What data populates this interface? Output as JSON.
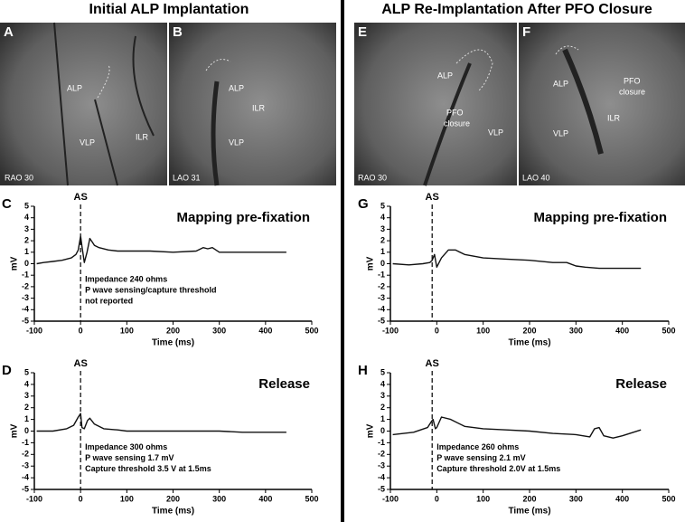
{
  "headings": [
    "Initial ALP Implantation",
    "ALP Re-Implantation After PFO Closure"
  ],
  "images": [
    {
      "letter": "A",
      "view": "RAO 30",
      "labels": [
        "ALP",
        "VLP",
        "ILR"
      ]
    },
    {
      "letter": "B",
      "view": "LAO 31",
      "labels": [
        "ALP",
        "ILR",
        "VLP"
      ]
    },
    {
      "letter": "E",
      "view": "RAO 30",
      "labels": [
        "ALP",
        "PFO",
        "closure",
        "VLP"
      ]
    },
    {
      "letter": "F",
      "view": "LAO 40",
      "labels": [
        "ALP",
        "PFO",
        "closure",
        "ILR",
        "VLP"
      ]
    }
  ],
  "chart_data": [
    {
      "type": "line",
      "panel": "C",
      "title": "Mapping pre-fixation",
      "xlabel": "Time (ms)",
      "ylabel": "mV",
      "color": "#111111",
      "marker": {
        "label": "AS",
        "x": 0
      },
      "notes": [
        "Impedance 240 ohms",
        "P wave sensing/capture threshold",
        "not reported"
      ],
      "x": [
        -95,
        -80,
        -60,
        -40,
        -20,
        -10,
        -5,
        0,
        3,
        8,
        14,
        20,
        25,
        30,
        40,
        60,
        80,
        100,
        150,
        200,
        250,
        265,
        275,
        285,
        300,
        350,
        400,
        445
      ],
      "values": [
        0,
        0.1,
        0.2,
        0.3,
        0.5,
        0.8,
        1.2,
        2.4,
        1.5,
        0.1,
        1.0,
        2.2,
        1.9,
        1.6,
        1.4,
        1.2,
        1.1,
        1.1,
        1.1,
        1.0,
        1.1,
        1.4,
        1.3,
        1.4,
        1.0,
        1.0,
        1.0,
        1.0
      ],
      "xlim": [
        -100,
        500
      ],
      "xticks": [
        -100,
        0,
        100,
        200,
        300,
        400,
        500
      ],
      "ylim": [
        -5,
        5
      ],
      "yticks": [
        5,
        4,
        3,
        2,
        1,
        0,
        -1,
        -2,
        -3,
        -4,
        -5
      ]
    },
    {
      "type": "line",
      "panel": "D",
      "title": "Release",
      "xlabel": "Time (ms)",
      "ylabel": "mV",
      "color": "#111111",
      "marker": {
        "label": "AS",
        "x": 0
      },
      "notes": [
        "Impedance 300 ohms",
        "P wave sensing 1.7 mV",
        "Capture threshold 3.5 V at 1.5ms"
      ],
      "x": [
        -95,
        -60,
        -30,
        -15,
        -5,
        0,
        3,
        8,
        15,
        20,
        30,
        50,
        80,
        100,
        150,
        200,
        250,
        300,
        350,
        400,
        445
      ],
      "values": [
        0,
        0,
        0.2,
        0.5,
        1.2,
        1.5,
        0.3,
        0.2,
        0.9,
        1.1,
        0.6,
        0.2,
        0.1,
        0,
        0,
        0,
        0,
        0,
        -0.1,
        -0.1,
        -0.1
      ],
      "xlim": [
        -100,
        500
      ],
      "xticks": [
        -100,
        0,
        100,
        200,
        300,
        400,
        500
      ],
      "ylim": [
        -5,
        5
      ],
      "yticks": [
        5,
        4,
        3,
        2,
        1,
        0,
        -1,
        -2,
        -3,
        -4,
        -5
      ]
    },
    {
      "type": "line",
      "panel": "G",
      "title": "Mapping pre-fixation",
      "xlabel": "Time (ms)",
      "ylabel": "mV",
      "color": "#111111",
      "marker": {
        "label": "AS",
        "x": -10
      },
      "notes": [],
      "x": [
        -95,
        -60,
        -30,
        -15,
        -10,
        -5,
        0,
        10,
        25,
        40,
        60,
        100,
        150,
        200,
        250,
        280,
        300,
        320,
        350,
        400,
        440
      ],
      "values": [
        0,
        -0.1,
        0,
        0.1,
        0.3,
        0.8,
        -0.3,
        0.5,
        1.2,
        1.2,
        0.8,
        0.5,
        0.4,
        0.3,
        0.1,
        0.1,
        -0.2,
        -0.3,
        -0.4,
        -0.4,
        -0.4
      ],
      "xlim": [
        -100,
        500
      ],
      "xticks": [
        -100,
        0,
        100,
        200,
        300,
        400,
        500
      ],
      "ylim": [
        -5,
        5
      ],
      "yticks": [
        5,
        4,
        3,
        2,
        1,
        0,
        -1,
        -2,
        -3,
        -4,
        -5
      ]
    },
    {
      "type": "line",
      "panel": "H",
      "title": "Release",
      "xlabel": "Time (ms)",
      "ylabel": "mV",
      "color": "#111111",
      "marker": {
        "label": "AS",
        "x": -10
      },
      "notes": [
        "Impedance 260 ohms",
        "P wave sensing 2.1 mV",
        "Capture threshold 2.0V at 1.5ms"
      ],
      "x": [
        -95,
        -50,
        -20,
        -12,
        -8,
        -3,
        0,
        10,
        30,
        60,
        100,
        150,
        200,
        250,
        300,
        330,
        340,
        350,
        360,
        380,
        400,
        440
      ],
      "values": [
        -0.3,
        -0.1,
        0.3,
        0.8,
        1.0,
        0.2,
        0.3,
        1.2,
        1.0,
        0.4,
        0.2,
        0.1,
        0,
        -0.2,
        -0.3,
        -0.5,
        0.2,
        0.3,
        -0.4,
        -0.6,
        -0.4,
        0.1
      ],
      "xlim": [
        -100,
        500
      ],
      "xticks": [
        -100,
        0,
        100,
        200,
        300,
        400,
        500
      ],
      "ylim": [
        -5,
        5
      ],
      "yticks": [
        5,
        4,
        3,
        2,
        1,
        0,
        -1,
        -2,
        -3,
        -4,
        -5
      ]
    }
  ]
}
